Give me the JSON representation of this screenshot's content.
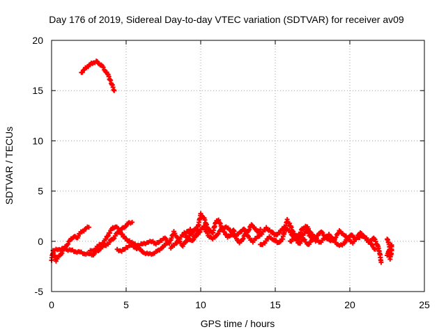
{
  "chart_data": {
    "type": "scatter",
    "title": "Day 176 of 2019, Sidereal Day-to-day VTEC variation (SDTVAR) for receiver av09",
    "xlabel": "GPS time / hours",
    "ylabel": "SDTVAR / TECUs",
    "xlim": [
      0,
      25
    ],
    "ylim": [
      -5,
      20
    ],
    "grid": true,
    "marker": "+",
    "color": "#ff0000",
    "x_ticks": [
      0,
      5,
      10,
      15,
      20,
      25
    ],
    "y_ticks": [
      -5,
      0,
      5,
      10,
      15,
      20
    ],
    "x_tick_labels": [
      "0",
      "5",
      "10",
      "15",
      "20",
      "25"
    ],
    "y_tick_labels": [
      "-5",
      "0",
      "5",
      "10",
      "15",
      "20"
    ],
    "series": [
      {
        "name": "upper arc",
        "points": [
          [
            2.0,
            16.8
          ],
          [
            2.2,
            17.1
          ],
          [
            2.4,
            17.4
          ],
          [
            2.6,
            17.6
          ],
          [
            2.8,
            17.8
          ],
          [
            3.0,
            17.9
          ],
          [
            3.2,
            17.7
          ],
          [
            3.4,
            17.4
          ],
          [
            3.6,
            17.0
          ],
          [
            3.8,
            16.5
          ],
          [
            4.0,
            15.8
          ],
          [
            4.2,
            15.0
          ]
        ]
      },
      {
        "name": "lower band A",
        "points": [
          [
            0.0,
            -1.8
          ],
          [
            0.1,
            -1.0
          ],
          [
            0.3,
            -1.9
          ],
          [
            0.5,
            -1.5
          ],
          [
            0.7,
            -1.1
          ],
          [
            0.9,
            -0.6
          ],
          [
            1.1,
            -0.2
          ],
          [
            1.3,
            0.2
          ],
          [
            1.5,
            0.5
          ],
          [
            1.7,
            0.3
          ],
          [
            1.9,
            0.8
          ],
          [
            2.1,
            1.0
          ],
          [
            2.3,
            1.3
          ],
          [
            2.5,
            1.4
          ]
        ]
      },
      {
        "name": "lower band B",
        "points": [
          [
            0.2,
            -0.9
          ],
          [
            0.5,
            -0.8
          ],
          [
            0.8,
            -0.7
          ],
          [
            1.0,
            -0.8
          ],
          [
            1.3,
            -0.9
          ],
          [
            1.6,
            -1.0
          ],
          [
            1.9,
            -1.1
          ],
          [
            2.2,
            -1.2
          ],
          [
            2.5,
            -1.3
          ],
          [
            2.8,
            -1.3
          ],
          [
            3.0,
            -1.0
          ],
          [
            3.2,
            -0.8
          ],
          [
            3.5,
            -0.5
          ],
          [
            3.8,
            -0.2
          ],
          [
            4.0,
            0.1
          ],
          [
            4.2,
            0.4
          ],
          [
            4.4,
            0.8
          ],
          [
            4.6,
            1.1
          ],
          [
            4.8,
            1.3
          ],
          [
            5.0,
            1.6
          ],
          [
            5.2,
            1.8
          ],
          [
            5.4,
            1.9
          ]
        ]
      },
      {
        "name": "lower band C",
        "points": [
          [
            2.6,
            -1.0
          ],
          [
            2.9,
            -0.8
          ],
          [
            3.2,
            -0.4
          ],
          [
            3.5,
            -0.1
          ],
          [
            3.7,
            0.4
          ],
          [
            3.9,
            0.9
          ],
          [
            4.1,
            1.3
          ],
          [
            4.3,
            1.5
          ],
          [
            4.6,
            1.0
          ],
          [
            4.8,
            0.5
          ],
          [
            5.0,
            0.2
          ],
          [
            5.3,
            -0.1
          ],
          [
            5.6,
            -0.3
          ],
          [
            5.9,
            -0.4
          ],
          [
            6.2,
            -0.2
          ],
          [
            6.5,
            -0.1
          ],
          [
            6.8,
            0.0
          ],
          [
            7.0,
            -0.3
          ],
          [
            7.3,
            0.1
          ],
          [
            7.6,
            0.3
          ],
          [
            7.9,
            -0.2
          ]
        ]
      },
      {
        "name": "lower band D",
        "points": [
          [
            4.4,
            -0.8
          ],
          [
            4.7,
            -1.0
          ],
          [
            5.0,
            -0.6
          ],
          [
            5.3,
            -0.4
          ],
          [
            5.6,
            -0.6
          ],
          [
            5.9,
            -0.8
          ],
          [
            6.2,
            -1.1
          ],
          [
            6.5,
            -1.3
          ],
          [
            6.8,
            -1.2
          ],
          [
            7.1,
            -1.0
          ],
          [
            7.4,
            -0.6
          ],
          [
            7.7,
            -0.3
          ],
          [
            8.0,
            0.2
          ],
          [
            8.2,
            0.9
          ],
          [
            8.4,
            0.5
          ],
          [
            8.6,
            -0.1
          ],
          [
            8.8,
            -0.4
          ],
          [
            9.0,
            -0.1
          ],
          [
            9.2,
            0.4
          ],
          [
            9.4,
            0.9
          ],
          [
            9.6,
            1.3
          ],
          [
            9.8,
            1.0
          ]
        ]
      },
      {
        "name": "lower band E",
        "points": [
          [
            8.0,
            -0.6
          ],
          [
            8.3,
            -0.3
          ],
          [
            8.6,
            0.3
          ],
          [
            8.9,
            0.8
          ],
          [
            9.1,
            0.2
          ],
          [
            9.4,
            0.0
          ],
          [
            9.7,
            0.6
          ],
          [
            10.0,
            2.7
          ],
          [
            10.2,
            2.4
          ],
          [
            10.4,
            1.6
          ],
          [
            10.6,
            1.0
          ],
          [
            10.8,
            0.8
          ],
          [
            11.0,
            1.9
          ],
          [
            11.2,
            2.1
          ],
          [
            11.4,
            1.4
          ],
          [
            11.6,
            0.9
          ],
          [
            11.8,
            0.4
          ],
          [
            12.0,
            0.6
          ],
          [
            12.2,
            1.1
          ],
          [
            12.4,
            0.3
          ],
          [
            12.6,
            -0.2
          ],
          [
            12.8,
            0.2
          ],
          [
            13.0,
            0.7
          ],
          [
            13.2,
            1.1
          ],
          [
            13.4,
            1.6
          ],
          [
            13.6,
            1.4
          ],
          [
            13.8,
            0.9
          ],
          [
            14.0,
            1.2
          ]
        ]
      },
      {
        "name": "lower band F",
        "points": [
          [
            9.0,
            0.8
          ],
          [
            9.3,
            1.2
          ],
          [
            9.6,
            0.4
          ],
          [
            9.9,
            0.9
          ],
          [
            10.2,
            1.5
          ],
          [
            10.5,
            0.6
          ],
          [
            10.8,
            0.2
          ],
          [
            11.1,
            0.7
          ],
          [
            11.4,
            1.2
          ],
          [
            11.7,
            1.5
          ],
          [
            12.0,
            1.0
          ],
          [
            12.3,
            0.5
          ],
          [
            12.6,
            0.8
          ],
          [
            12.9,
            1.3
          ],
          [
            13.2,
            0.4
          ],
          [
            13.5,
            0.0
          ],
          [
            13.8,
            0.4
          ],
          [
            14.1,
            0.8
          ],
          [
            14.4,
            1.3
          ],
          [
            14.7,
            1.0
          ],
          [
            15.0,
            0.6
          ],
          [
            15.3,
            0.9
          ],
          [
            15.6,
            1.4
          ],
          [
            15.9,
            1.1
          ],
          [
            16.2,
            0.5
          ],
          [
            16.5,
            0.2
          ],
          [
            16.8,
            0.6
          ],
          [
            17.1,
            1.0
          ],
          [
            17.4,
            0.4
          ],
          [
            17.7,
            0.0
          ]
        ]
      },
      {
        "name": "lower band G",
        "points": [
          [
            14.0,
            -0.4
          ],
          [
            14.3,
            -0.1
          ],
          [
            14.6,
            0.4
          ],
          [
            14.9,
            0.2
          ],
          [
            15.2,
            -0.2
          ],
          [
            15.5,
            0.3
          ],
          [
            15.8,
            2.1
          ],
          [
            16.0,
            1.6
          ],
          [
            16.2,
            0.9
          ],
          [
            16.5,
            0.4
          ],
          [
            16.8,
            1.2
          ],
          [
            17.1,
            1.5
          ],
          [
            17.4,
            0.8
          ],
          [
            17.7,
            0.3
          ],
          [
            18.0,
            -0.1
          ],
          [
            18.3,
            0.3
          ],
          [
            18.6,
            0.7
          ],
          [
            18.9,
            0.1
          ],
          [
            19.2,
            -0.3
          ],
          [
            19.5,
            -0.4
          ],
          [
            19.8,
            0.2
          ],
          [
            20.1,
            0.6
          ],
          [
            20.4,
            0.3
          ],
          [
            20.7,
            0.8
          ],
          [
            21.0,
            0.5
          ],
          [
            21.3,
            -0.1
          ],
          [
            21.6,
            0.4
          ],
          [
            21.9,
            -0.6
          ],
          [
            22.0,
            -1.1
          ],
          [
            22.1,
            -2.1
          ]
        ]
      },
      {
        "name": "lower band H",
        "points": [
          [
            16.0,
            0.0
          ],
          [
            16.3,
            0.3
          ],
          [
            16.6,
            -0.2
          ],
          [
            16.9,
            0.2
          ],
          [
            17.2,
            -0.3
          ],
          [
            17.5,
            0.1
          ],
          [
            17.8,
            0.6
          ],
          [
            18.1,
            0.9
          ],
          [
            18.4,
            0.4
          ],
          [
            18.7,
            0.0
          ],
          [
            19.0,
            0.3
          ],
          [
            19.3,
            1.0
          ],
          [
            19.6,
            0.7
          ],
          [
            19.9,
            0.2
          ],
          [
            20.2,
            -0.1
          ],
          [
            20.5,
            0.3
          ],
          [
            20.8,
            0.6
          ],
          [
            21.1,
            0.2
          ],
          [
            21.4,
            -0.2
          ],
          [
            21.7,
            -0.8
          ]
        ]
      },
      {
        "name": "late segment",
        "points": [
          [
            22.5,
            0.3
          ],
          [
            22.6,
            -0.2
          ],
          [
            22.7,
            -0.7
          ],
          [
            22.6,
            -1.2
          ],
          [
            22.7,
            -1.7
          ],
          [
            22.8,
            -1.0
          ],
          [
            22.8,
            -0.3
          ],
          [
            22.5,
            -1.4
          ]
        ]
      }
    ]
  }
}
